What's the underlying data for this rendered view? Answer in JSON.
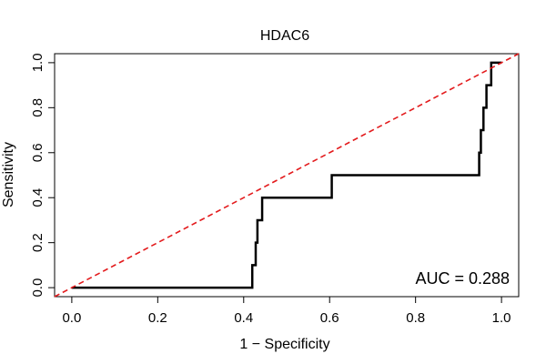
{
  "chart_data": {
    "type": "line",
    "title": "HDAC6",
    "xlabel": "1 − Specificity",
    "ylabel": "Sensitivity",
    "xlim": [
      -0.04,
      1.04
    ],
    "ylim": [
      -0.04,
      1.04
    ],
    "x_ticks": [
      0.0,
      0.2,
      0.4,
      0.6,
      0.8,
      1.0
    ],
    "y_ticks": [
      0.0,
      0.2,
      0.4,
      0.6,
      0.8,
      1.0
    ],
    "x_tick_labels": [
      "0.0",
      "0.2",
      "0.4",
      "0.6",
      "0.8",
      "1.0"
    ],
    "y_tick_labels": [
      "0.0",
      "0.2",
      "0.4",
      "0.6",
      "0.8",
      "1.0"
    ],
    "grid": false,
    "series": [
      {
        "style": "solid",
        "color": "#000000",
        "points": [
          [
            0.0,
            0.0
          ],
          [
            0.42,
            0.0
          ],
          [
            0.42,
            0.1
          ],
          [
            0.428,
            0.1
          ],
          [
            0.428,
            0.2
          ],
          [
            0.432,
            0.2
          ],
          [
            0.432,
            0.3
          ],
          [
            0.443,
            0.3
          ],
          [
            0.443,
            0.4
          ],
          [
            0.605,
            0.4
          ],
          [
            0.605,
            0.5
          ],
          [
            0.948,
            0.5
          ],
          [
            0.948,
            0.6
          ],
          [
            0.952,
            0.6
          ],
          [
            0.952,
            0.7
          ],
          [
            0.958,
            0.7
          ],
          [
            0.958,
            0.8
          ],
          [
            0.965,
            0.8
          ],
          [
            0.965,
            0.9
          ],
          [
            0.976,
            0.9
          ],
          [
            0.976,
            1.0
          ],
          [
            1.0,
            1.0
          ]
        ]
      },
      {
        "style": "dashed",
        "color": "#e31a1c",
        "points": [
          [
            -0.04,
            -0.04
          ],
          [
            1.04,
            1.04
          ]
        ]
      }
    ],
    "annotation": "AUC = 0.288"
  }
}
